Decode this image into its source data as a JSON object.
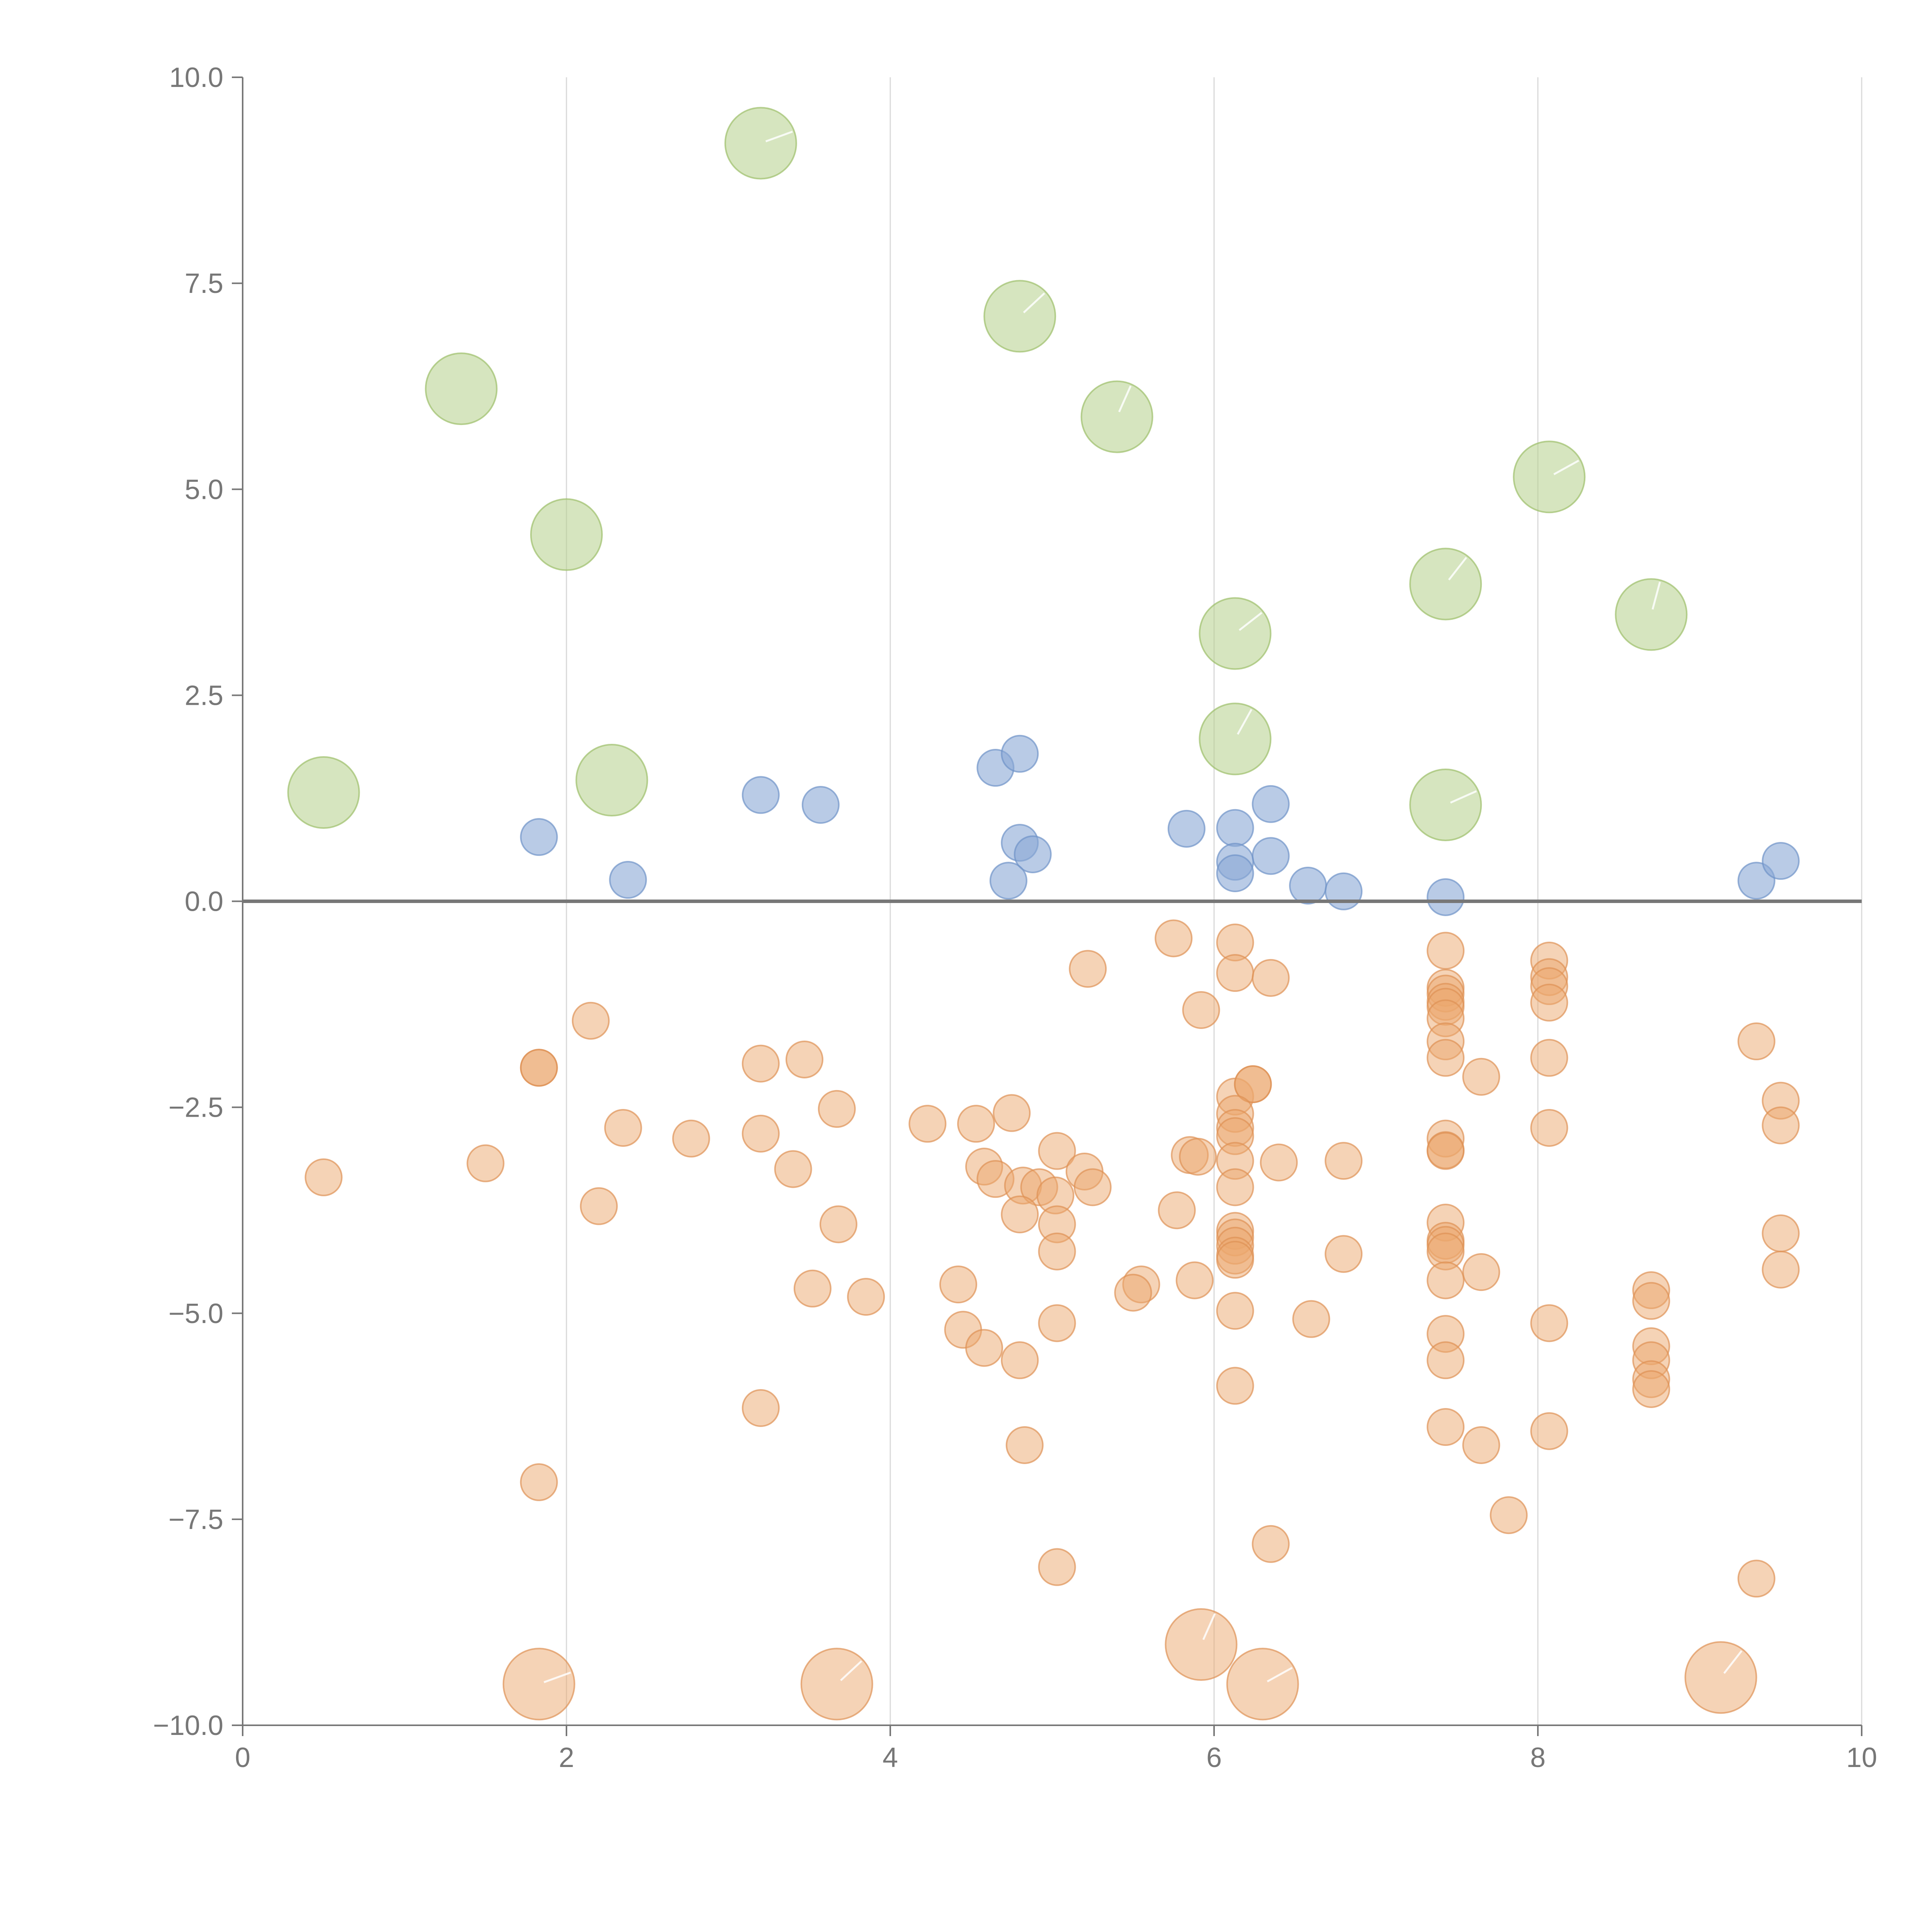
{
  "chart_data": {
    "type": "scatter",
    "title": "",
    "xlabel": "",
    "ylabel": "",
    "xlim": [
      0,
      10
    ],
    "ylim": [
      -10,
      10
    ],
    "x_ticks": [
      0,
      2,
      4,
      6,
      8,
      10
    ],
    "y_ticks": [
      -10,
      -7.5,
      -5,
      -2.5,
      0,
      2.5,
      5,
      7.5,
      10
    ],
    "x_tick_labels": [
      "0",
      "2",
      "4",
      "6",
      "8",
      "10"
    ],
    "y_tick_labels": [
      "−10.0",
      "−7.5",
      "−5.0",
      "−2.5",
      "0.0",
      "2.5",
      "5.0",
      "7.5",
      "10.0"
    ],
    "grid": "vertical",
    "zero_line": true,
    "series": [
      {
        "name": "large-positive",
        "color": "#b5d08a",
        "stroke": "#9cbf6a",
        "opacity": 0.55,
        "size": "large",
        "points": [
          [
            3.2,
            9.2
          ],
          [
            1.35,
            6.22
          ],
          [
            4.8,
            7.1
          ],
          [
            5.4,
            5.88
          ],
          [
            2.0,
            4.45
          ],
          [
            8.07,
            5.15
          ],
          [
            7.43,
            3.85
          ],
          [
            8.7,
            3.48
          ],
          [
            6.13,
            3.25
          ],
          [
            6.13,
            1.97
          ],
          [
            0.5,
            1.32
          ],
          [
            2.28,
            1.47
          ],
          [
            7.43,
            1.17
          ]
        ],
        "leaders": [
          [
            3.2,
            9.2
          ],
          [
            4.8,
            7.1
          ],
          [
            5.4,
            5.88
          ],
          [
            8.07,
            5.15
          ],
          [
            7.43,
            3.85
          ],
          [
            8.7,
            3.48
          ],
          [
            6.13,
            3.25
          ],
          [
            6.13,
            1.97
          ],
          [
            7.43,
            1.17
          ]
        ]
      },
      {
        "name": "small-positive",
        "color": "#8aa9d6",
        "stroke": "#6f93c8",
        "opacity": 0.6,
        "size": "small",
        "points": [
          [
            1.83,
            0.78
          ],
          [
            2.38,
            0.26
          ],
          [
            3.2,
            1.29
          ],
          [
            3.57,
            1.17
          ],
          [
            4.65,
            1.62
          ],
          [
            4.8,
            1.79
          ],
          [
            4.8,
            0.71
          ],
          [
            4.88,
            0.57
          ],
          [
            4.73,
            0.25
          ],
          [
            5.83,
            0.88
          ],
          [
            6.13,
            0.89
          ],
          [
            6.13,
            0.48
          ],
          [
            6.13,
            0.34
          ],
          [
            6.35,
            1.18
          ],
          [
            6.35,
            0.55
          ],
          [
            6.58,
            0.19
          ],
          [
            6.8,
            0.12
          ],
          [
            7.43,
            0.05
          ],
          [
            9.35,
            0.25
          ],
          [
            9.5,
            0.49
          ]
        ],
        "leaders": []
      },
      {
        "name": "negative",
        "color": "#eba86e",
        "stroke": "#de9256",
        "opacity": 0.5,
        "size": "small",
        "points": [
          [
            0.5,
            -3.35
          ],
          [
            1.5,
            -3.18
          ],
          [
            1.83,
            -2.02
          ],
          [
            1.83,
            -2.02
          ],
          [
            2.15,
            -1.45
          ],
          [
            2.35,
            -2.75
          ],
          [
            2.2,
            -3.7
          ],
          [
            2.77,
            -2.88
          ],
          [
            3.2,
            -1.97
          ],
          [
            3.2,
            -2.82
          ],
          [
            3.4,
            -3.25
          ],
          [
            3.47,
            -1.92
          ],
          [
            3.67,
            -2.52
          ],
          [
            3.68,
            -3.92
          ],
          [
            3.52,
            -4.7
          ],
          [
            3.85,
            -4.8
          ],
          [
            1.83,
            -7.05
          ],
          [
            3.2,
            -6.15
          ],
          [
            4.23,
            -2.7
          ],
          [
            4.53,
            -2.7
          ],
          [
            4.75,
            -2.57
          ],
          [
            4.58,
            -3.22
          ],
          [
            4.65,
            -3.37
          ],
          [
            4.82,
            -3.45
          ],
          [
            4.92,
            -3.47
          ],
          [
            5.02,
            -3.57
          ],
          [
            5.03,
            -3.03
          ],
          [
            5.03,
            -3.92
          ],
          [
            4.8,
            -3.8
          ],
          [
            5.03,
            -4.25
          ],
          [
            5.2,
            -3.28
          ],
          [
            5.25,
            -3.47
          ],
          [
            4.42,
            -4.65
          ],
          [
            4.45,
            -5.2
          ],
          [
            4.58,
            -5.42
          ],
          [
            4.8,
            -5.57
          ],
          [
            5.03,
            -5.12
          ],
          [
            4.83,
            -6.6
          ],
          [
            5.03,
            -8.08
          ],
          [
            5.22,
            -0.82
          ],
          [
            5.75,
            -0.45
          ],
          [
            5.92,
            -1.32
          ],
          [
            5.85,
            -3.08
          ],
          [
            5.9,
            -3.1
          ],
          [
            5.77,
            -3.75
          ],
          [
            5.88,
            -4.6
          ],
          [
            5.55,
            -4.65
          ],
          [
            5.5,
            -4.75
          ],
          [
            6.13,
            -0.5
          ],
          [
            6.13,
            -0.87
          ],
          [
            6.35,
            -0.93
          ],
          [
            6.13,
            -2.37
          ],
          [
            6.24,
            -2.22
          ],
          [
            6.24,
            -2.22
          ],
          [
            6.13,
            -2.58
          ],
          [
            6.13,
            -2.75
          ],
          [
            6.13,
            -2.85
          ],
          [
            6.13,
            -3.15
          ],
          [
            6.4,
            -3.17
          ],
          [
            6.13,
            -3.47
          ],
          [
            6.13,
            -4.0
          ],
          [
            6.13,
            -4.08
          ],
          [
            6.13,
            -4.18
          ],
          [
            6.13,
            -4.3
          ],
          [
            6.13,
            -4.35
          ],
          [
            6.13,
            -4.97
          ],
          [
            6.13,
            -5.88
          ],
          [
            6.6,
            -5.07
          ],
          [
            6.35,
            -7.8
          ],
          [
            6.8,
            -3.15
          ],
          [
            6.8,
            -4.28
          ],
          [
            7.43,
            -0.6
          ],
          [
            7.43,
            -1.05
          ],
          [
            7.43,
            -1.12
          ],
          [
            7.43,
            -1.22
          ],
          [
            7.43,
            -1.28
          ],
          [
            7.43,
            -1.42
          ],
          [
            7.43,
            -1.7
          ],
          [
            7.43,
            -1.9
          ],
          [
            7.43,
            -2.88
          ],
          [
            7.43,
            -3.02
          ],
          [
            7.43,
            -3.03
          ],
          [
            7.43,
            -3.9
          ],
          [
            7.43,
            -4.12
          ],
          [
            7.43,
            -4.17
          ],
          [
            7.43,
            -4.25
          ],
          [
            7.43,
            -4.6
          ],
          [
            7.43,
            -5.25
          ],
          [
            7.43,
            -5.57
          ],
          [
            7.43,
            -6.38
          ],
          [
            7.65,
            -2.13
          ],
          [
            7.65,
            -4.5
          ],
          [
            7.65,
            -6.6
          ],
          [
            7.82,
            -7.45
          ],
          [
            8.07,
            -0.72
          ],
          [
            8.07,
            -0.92
          ],
          [
            8.07,
            -1.03
          ],
          [
            8.07,
            -1.23
          ],
          [
            8.07,
            -1.9
          ],
          [
            8.07,
            -2.75
          ],
          [
            8.07,
            -5.12
          ],
          [
            8.07,
            -6.43
          ],
          [
            8.7,
            -4.72
          ],
          [
            8.7,
            -4.85
          ],
          [
            8.7,
            -5.4
          ],
          [
            8.7,
            -5.57
          ],
          [
            8.7,
            -5.8
          ],
          [
            8.7,
            -5.92
          ],
          [
            9.35,
            -1.7
          ],
          [
            9.5,
            -2.42
          ],
          [
            9.5,
            -2.72
          ],
          [
            9.5,
            -4.03
          ],
          [
            9.5,
            -4.47
          ],
          [
            9.35,
            -8.22
          ]
        ],
        "leaders": []
      },
      {
        "name": "large-negative",
        "color": "#eba86e",
        "stroke": "#de9256",
        "opacity": 0.5,
        "size": "large",
        "points": [
          [
            1.83,
            -9.5
          ],
          [
            3.67,
            -9.5
          ],
          [
            5.92,
            -9.02
          ],
          [
            6.3,
            -9.5
          ],
          [
            9.13,
            -9.42
          ]
        ],
        "leaders": [
          [
            1.83,
            -9.5
          ],
          [
            3.67,
            -9.5
          ],
          [
            5.92,
            -9.02
          ],
          [
            6.3,
            -9.5
          ],
          [
            9.13,
            -9.42
          ]
        ]
      }
    ]
  }
}
